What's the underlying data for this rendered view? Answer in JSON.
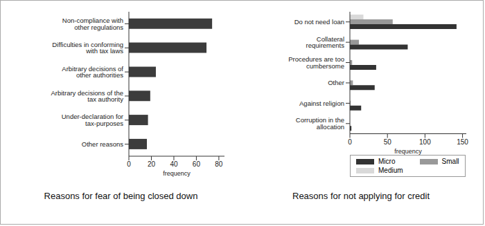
{
  "chart_data": [
    {
      "type": "bar",
      "orientation": "horizontal",
      "title": "Reasons for fear of being closed down",
      "categories": [
        "Non-compliance with other regulations",
        "Difficulties in conforming with tax laws",
        "Arbitrary decisions of other authorities",
        "Arbitrary decisions of the tax authority",
        "Under-declaration for tax-purposes",
        "Other reasons"
      ],
      "values": [
        74,
        69,
        24,
        19,
        17,
        16
      ],
      "color": "#3c3c3c",
      "x_label": "frequency",
      "xlim": [
        0,
        85
      ],
      "xticks": [
        0,
        20,
        40,
        60,
        80
      ],
      "grid": false
    },
    {
      "type": "bar",
      "orientation": "horizontal",
      "title": "Reasons for not applying for credit",
      "categories": [
        "Do not need loan",
        "Collateral requirements",
        "Procedures are too cumbersome",
        "Other",
        "Against religion",
        "Corruption in the allocation"
      ],
      "series": [
        {
          "name": "Micro",
          "color": "#333333",
          "values": [
            142,
            77,
            35,
            33,
            15,
            2
          ]
        },
        {
          "name": "Small",
          "color": "#999999",
          "values": [
            57,
            12,
            3,
            4,
            1,
            0
          ]
        },
        {
          "name": "Medium",
          "color": "#d9d9d9",
          "values": [
            18,
            0,
            0,
            0,
            0,
            0
          ]
        }
      ],
      "x_label": "frequency",
      "xlim": [
        0,
        155
      ],
      "xticks": [
        0,
        50,
        100,
        150
      ],
      "grid": false,
      "legend": "bottom"
    }
  ]
}
